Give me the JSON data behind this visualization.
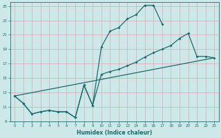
{
  "xlabel": "Humidex (Indice chaleur)",
  "background_color": "#cce8e8",
  "grid_color": "#aacccc",
  "line_color": "#1a6b6b",
  "xlim": [
    -0.5,
    23.5
  ],
  "ylim": [
    9,
    25.5
  ],
  "yticks": [
    9,
    11,
    13,
    15,
    17,
    19,
    21,
    23,
    25
  ],
  "xticks": [
    0,
    1,
    2,
    3,
    4,
    5,
    6,
    7,
    8,
    9,
    10,
    11,
    12,
    13,
    14,
    15,
    16,
    17,
    18,
    19,
    20,
    21,
    22,
    23
  ],
  "line1_x": [
    0,
    1,
    2,
    3,
    4,
    5,
    6,
    7,
    8,
    9,
    10,
    11,
    12,
    13,
    14,
    15,
    16,
    17
  ],
  "line1_y": [
    12.5,
    11.5,
    10.0,
    10.3,
    10.5,
    10.3,
    10.3,
    9.5,
    14.0,
    11.2,
    19.3,
    21.5,
    22.0,
    23.2,
    23.8,
    25.1,
    25.1,
    22.5
  ],
  "line2_x": [
    0,
    1,
    2,
    3,
    4,
    5,
    6,
    7,
    8,
    9,
    10,
    11,
    12,
    13,
    14,
    15,
    16,
    17,
    18,
    19,
    20,
    21,
    22,
    23
  ],
  "line2_y": [
    12.5,
    11.5,
    10.0,
    10.3,
    10.5,
    10.3,
    10.3,
    9.5,
    14.0,
    11.2,
    15.5,
    15.9,
    16.2,
    16.7,
    17.2,
    17.9,
    18.5,
    19.0,
    19.5,
    20.5,
    21.2,
    18.0,
    18.0,
    17.8
  ],
  "line3_x": [
    0,
    23
  ],
  "line3_y": [
    12.5,
    17.8
  ]
}
